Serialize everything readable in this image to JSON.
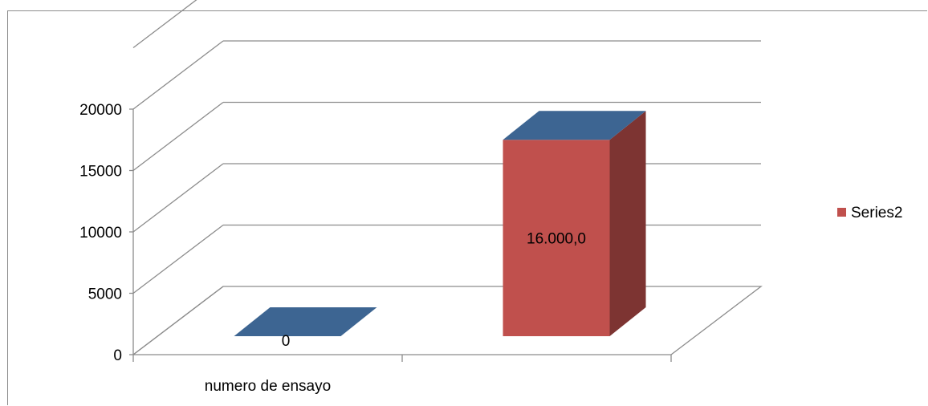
{
  "chart_data": {
    "type": "bar",
    "categories": [
      "numero de ensayo",
      ""
    ],
    "series": [
      {
        "values": [
          0,
          null
        ],
        "color": "#3d6592"
      },
      {
        "name": "Series2",
        "values": [
          null,
          16000
        ],
        "color": "#c0504d"
      }
    ],
    "data_labels": [
      "0",
      "16.000,0"
    ],
    "yticks": [
      0,
      5000,
      10000,
      15000,
      20000
    ],
    "ytick_labels": [
      "0",
      "5000",
      "10000",
      "15000",
      "20000"
    ],
    "ylim": [
      0,
      25000
    ],
    "grid": true,
    "legend": {
      "position": "right",
      "entries": [
        "Series2"
      ]
    },
    "title": "",
    "xlabel": "",
    "ylabel": ""
  }
}
